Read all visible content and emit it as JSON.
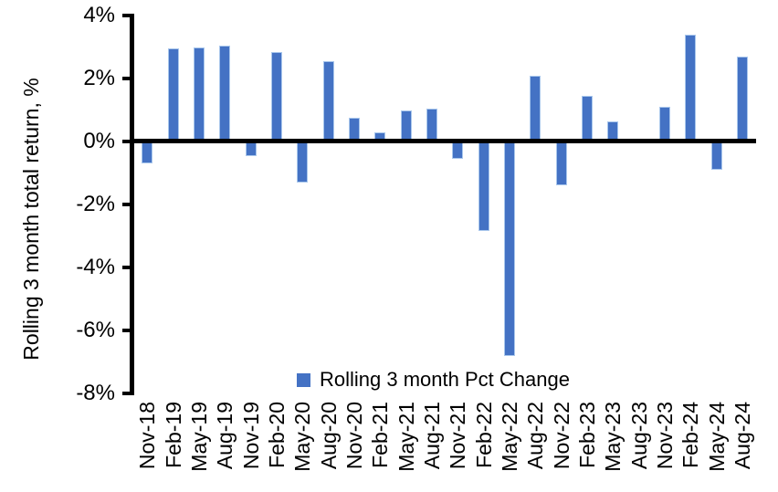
{
  "chart_data": {
    "type": "bar",
    "title": "",
    "xlabel": "",
    "ylabel": "Rolling 3 month total return, %",
    "categories": [
      "Nov-18",
      "Feb-19",
      "May-19",
      "Aug-19",
      "Nov-19",
      "Feb-20",
      "May-20",
      "Aug-20",
      "Nov-20",
      "Feb-21",
      "May-21",
      "Aug-21",
      "Nov-21",
      "Feb-22",
      "May-22",
      "Aug-22",
      "Nov-22",
      "Feb-23",
      "May-23",
      "Aug-23",
      "Nov-23",
      "Feb-24",
      "May-24",
      "Aug-24"
    ],
    "values": [
      -0.7,
      2.95,
      3.0,
      3.05,
      -0.45,
      2.85,
      -1.3,
      2.55,
      0.75,
      0.3,
      1.0,
      1.05,
      -0.55,
      -2.85,
      -6.8,
      2.1,
      -1.4,
      1.45,
      0.65,
      0.0,
      1.1,
      3.4,
      -0.9,
      2.7
    ],
    "ylim": [
      -8,
      4
    ],
    "ytick_values": [
      4,
      2,
      0,
      -2,
      -4,
      -6,
      -8
    ],
    "ytick_labels": [
      "4%",
      "2%",
      "0%",
      "-2%",
      "-4%",
      "-6%",
      "-8%"
    ],
    "grid": false,
    "legend": {
      "label": "Rolling 3 month Pct Change",
      "position": "bottom-center"
    },
    "colors": {
      "bar_fill": "#4472C4",
      "bar_border": "#A9C7EC",
      "axis": "#000000",
      "background": "#FFFFFF"
    }
  }
}
